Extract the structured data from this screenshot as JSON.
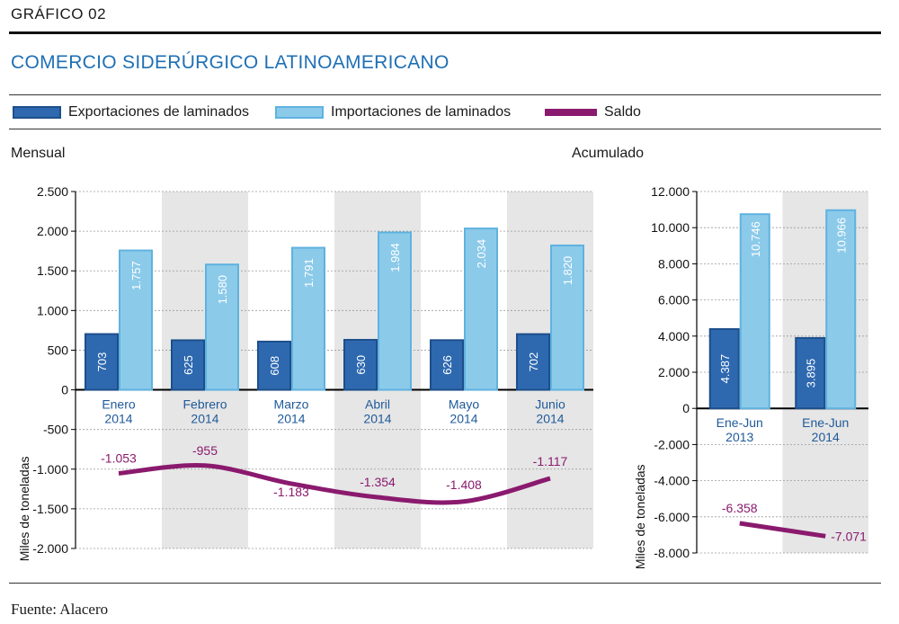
{
  "figure_label": "GRÁFICO  02",
  "title": "COMERCIO SIDERÚRGICO LATINOAMERICANO",
  "legend": {
    "exports": "Exportaciones de laminados",
    "imports": "Importaciones de laminados",
    "saldo": "Saldo"
  },
  "panels": {
    "left_title": "Mensual",
    "right_title": "Acumulado"
  },
  "source": "Fuente:  Alacero",
  "colors": {
    "exports": "#2e69b0",
    "exports_border": "#1d4f8a",
    "imports": "#8ccaea",
    "imports_border": "#5fb2df",
    "saldo": "#8a1a6e",
    "category_text": "#1f5a99",
    "band": "#e6e6e6"
  },
  "chart_data": [
    {
      "type": "bar",
      "title": "Mensual",
      "ylabel": "Miles de toneladas",
      "ylim": [
        -2000,
        2500
      ],
      "yticks": [
        -2000,
        -1500,
        -1000,
        -500,
        0,
        500,
        1000,
        1500,
        2000,
        2500
      ],
      "ytick_labels": [
        "-2.000",
        "-1.500",
        "-1.000",
        "-500",
        "0",
        "500",
        "1.000",
        "1.500",
        "2.000",
        "2.500"
      ],
      "categories": [
        [
          "Enero",
          "2014"
        ],
        [
          "Febrero",
          "2014"
        ],
        [
          "Marzo",
          "2014"
        ],
        [
          "Abril",
          "2014"
        ],
        [
          "Mayo",
          "2014"
        ],
        [
          "Junio",
          "2014"
        ]
      ],
      "series": [
        {
          "name": "Exportaciones de laminados",
          "kind": "bar",
          "values": [
            703,
            625,
            608,
            630,
            626,
            702
          ],
          "labels": [
            "703",
            "625",
            "608",
            "630",
            "626",
            "702"
          ]
        },
        {
          "name": "Importaciones de laminados",
          "kind": "bar",
          "values": [
            1757,
            1580,
            1791,
            1984,
            2034,
            1820
          ],
          "labels": [
            "1.757",
            "1.580",
            "1.791",
            "1.984",
            "2.034",
            "1.820"
          ]
        },
        {
          "name": "Saldo",
          "kind": "line",
          "values": [
            -1053,
            -955,
            -1183,
            -1354,
            -1408,
            -1117
          ],
          "labels": [
            "-1.053",
            "-955",
            "-1.183",
            "-1.354",
            "-1.408",
            "-1.117"
          ]
        }
      ]
    },
    {
      "type": "bar",
      "title": "Acumulado",
      "ylabel": "Miles de toneladas",
      "ylim": [
        -8000,
        12000
      ],
      "yticks": [
        -8000,
        -6000,
        -4000,
        -2000,
        0,
        2000,
        4000,
        6000,
        8000,
        10000,
        12000
      ],
      "ytick_labels": [
        "-8.000",
        "-6.000",
        "-4.000",
        "-2.000",
        "0",
        "2.000",
        "4.000",
        "6.000",
        "8.000",
        "10.000",
        "12.000"
      ],
      "categories": [
        [
          "Ene-Jun",
          "2013"
        ],
        [
          "Ene-Jun",
          "2014"
        ]
      ],
      "series": [
        {
          "name": "Exportaciones de laminados",
          "kind": "bar",
          "values": [
            4387,
            3895
          ],
          "labels": [
            "4.387",
            "3.895"
          ]
        },
        {
          "name": "Importaciones de laminados",
          "kind": "bar",
          "values": [
            10746,
            10966
          ],
          "labels": [
            "10.746",
            "10.966"
          ]
        },
        {
          "name": "Saldo",
          "kind": "line",
          "values": [
            -6358,
            -7071
          ],
          "labels": [
            "-6.358",
            "-7.071"
          ]
        }
      ]
    }
  ]
}
